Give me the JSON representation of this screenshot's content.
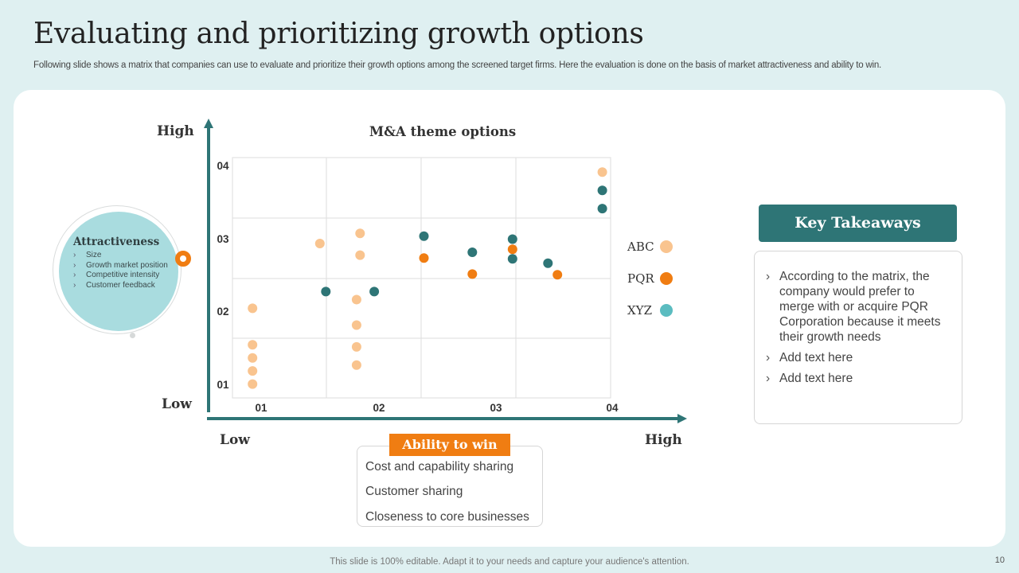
{
  "slide": {
    "title": "Evaluating and prioritizing growth options",
    "subtitle": "Following slide shows a matrix that companies can use to evaluate and prioritize their growth options among the screened target firms. Here the evaluation is done on the basis of market attractiveness and ability to win.",
    "footer": "This slide is 100% editable. Adapt it to your needs and capture your audience's attention.",
    "page_number": "10"
  },
  "attractiveness": {
    "title": "Attractiveness",
    "items": [
      "Size",
      "Growth market position",
      "Competitive intensity",
      "Customer feedback"
    ]
  },
  "axis_words": {
    "y_high": "High",
    "y_low": "Low",
    "x_low": "Low",
    "x_high": "High"
  },
  "ability": {
    "title": "Ability to win",
    "items": [
      "Cost and capability sharing",
      "Customer sharing",
      "Closeness to core businesses"
    ]
  },
  "takeaways": {
    "title": "Key Takeaways",
    "items": [
      "According to the matrix, the company would prefer to merge with or acquire PQR Corporation because it meets their growth needs",
      "Add text here",
      "Add text here"
    ]
  },
  "colors": {
    "ABC": "#f9c48f",
    "PQR": "#f07d12",
    "XYZ": "#2e7576",
    "XYZ_legend": "#5bbcc0",
    "axis": "#2e7576",
    "grid": "#dddddd"
  },
  "chart_data": {
    "type": "scatter",
    "title": "M&A theme options",
    "xlabel": "Ability to win",
    "ylabel": "Attractiveness",
    "xlim": [
      0.8,
      4.0
    ],
    "ylim": [
      0.8,
      4.1
    ],
    "x_ticks": [
      "01",
      "02",
      "03",
      "04"
    ],
    "y_ticks": [
      "01",
      "02",
      "03",
      "04"
    ],
    "legend_position": "right",
    "series": [
      {
        "name": "ABC",
        "points": [
          [
            0.97,
            0.99
          ],
          [
            0.97,
            1.17
          ],
          [
            0.97,
            1.35
          ],
          [
            0.97,
            1.53
          ],
          [
            0.97,
            2.03
          ],
          [
            1.54,
            2.92
          ],
          [
            1.85,
            1.25
          ],
          [
            1.85,
            1.5
          ],
          [
            1.85,
            1.8
          ],
          [
            1.85,
            2.15
          ],
          [
            1.88,
            2.76
          ],
          [
            1.88,
            3.06
          ],
          [
            3.93,
            3.9
          ]
        ]
      },
      {
        "name": "PQR",
        "points": [
          [
            2.42,
            2.72
          ],
          [
            2.83,
            2.5
          ],
          [
            3.17,
            2.84
          ],
          [
            3.55,
            2.49
          ]
        ]
      },
      {
        "name": "XYZ",
        "points": [
          [
            1.59,
            2.26
          ],
          [
            2.0,
            2.26
          ],
          [
            2.42,
            3.02
          ],
          [
            2.83,
            2.8
          ],
          [
            3.17,
            2.98
          ],
          [
            3.17,
            2.71
          ],
          [
            3.47,
            2.65
          ],
          [
            3.93,
            3.65
          ],
          [
            3.93,
            3.4
          ]
        ]
      }
    ]
  }
}
